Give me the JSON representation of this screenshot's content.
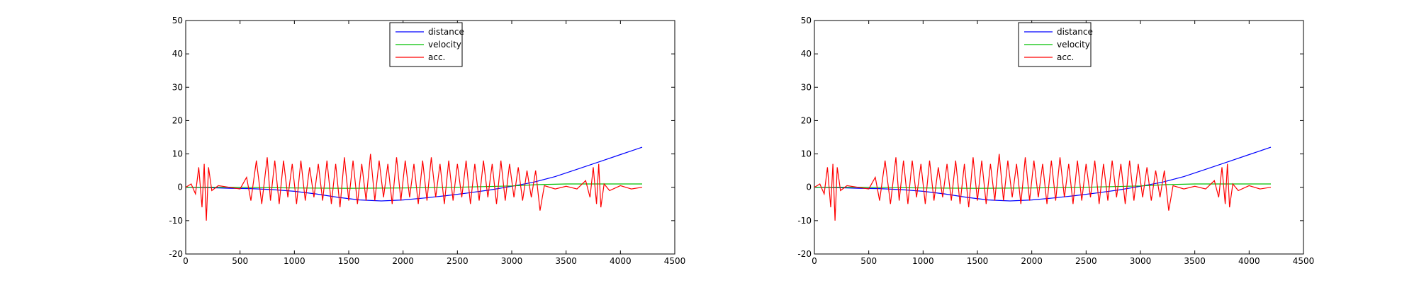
{
  "chart_data": [
    {
      "type": "line",
      "title": "",
      "xlabel": "",
      "ylabel": "",
      "xlim": [
        0,
        4500
      ],
      "ylim": [
        -20,
        50
      ],
      "xticks": [
        0,
        500,
        1000,
        1500,
        2000,
        2500,
        3000,
        3500,
        4000,
        4500
      ],
      "yticks": [
        -20,
        -10,
        0,
        10,
        20,
        30,
        40,
        50
      ],
      "x_tick_labels": [
        "0",
        "500",
        "1000",
        "1500",
        "2000",
        "2500",
        "3000",
        "3500",
        "4000",
        "4500"
      ],
      "y_tick_labels": [
        "-20",
        "-10",
        "0",
        "10",
        "20",
        "30",
        "40",
        "50"
      ],
      "grid": false,
      "legend_position": "top-center",
      "series": [
        {
          "name": "distance",
          "color": "#0000ff",
          "x": [
            0,
            200,
            400,
            600,
            800,
            1000,
            1200,
            1400,
            1600,
            1800,
            2000,
            2200,
            2400,
            2600,
            2800,
            3000,
            3200,
            3400,
            3600,
            3800,
            4000,
            4200
          ],
          "y": [
            0,
            -0.1,
            -0.3,
            -0.4,
            -0.7,
            -1.2,
            -2,
            -3,
            -3.8,
            -4.1,
            -3.8,
            -3.2,
            -2.5,
            -1.7,
            -0.8,
            0.3,
            1.5,
            3.2,
            5.4,
            7.6,
            9.8,
            12
          ]
        },
        {
          "name": "velocity",
          "color": "#00c000",
          "x": [
            0,
            500,
            1000,
            1500,
            2000,
            2500,
            3000,
            3250,
            3500,
            4200
          ],
          "y": [
            0,
            0,
            -0.2,
            -0.3,
            -0.2,
            0,
            0.4,
            0.8,
            1,
            1
          ]
        },
        {
          "name": "acc.",
          "color": "#ff0000",
          "x": [
            0,
            50,
            90,
            120,
            150,
            170,
            190,
            210,
            240,
            300,
            400,
            500,
            560,
            600,
            650,
            700,
            750,
            780,
            820,
            860,
            900,
            940,
            980,
            1020,
            1060,
            1100,
            1140,
            1180,
            1220,
            1260,
            1300,
            1340,
            1380,
            1420,
            1460,
            1500,
            1540,
            1580,
            1620,
            1660,
            1700,
            1740,
            1780,
            1820,
            1860,
            1900,
            1940,
            1980,
            2020,
            2060,
            2100,
            2140,
            2180,
            2220,
            2260,
            2300,
            2340,
            2380,
            2420,
            2460,
            2500,
            2540,
            2580,
            2620,
            2660,
            2700,
            2740,
            2780,
            2820,
            2860,
            2900,
            2940,
            2980,
            3020,
            3060,
            3100,
            3140,
            3180,
            3220,
            3260,
            3300,
            3400,
            3500,
            3600,
            3680,
            3720,
            3750,
            3780,
            3800,
            3820,
            3850,
            3900,
            4000,
            4100,
            4200
          ],
          "y": [
            0,
            1,
            -2,
            6,
            -6,
            7,
            -10,
            6,
            -1,
            0.5,
            0,
            -0.5,
            3,
            -4,
            8,
            -5,
            9,
            -4,
            8,
            -5,
            8,
            -3,
            7,
            -5,
            8,
            -4,
            6,
            -3,
            7,
            -4,
            8,
            -5,
            7,
            -6,
            9,
            -4,
            8,
            -5,
            7,
            -4,
            10,
            -4,
            8,
            -3,
            7,
            -5,
            9,
            -4,
            8,
            -3,
            7,
            -5,
            8,
            -4,
            9,
            -3,
            7,
            -5,
            8,
            -4,
            7,
            -3,
            8,
            -5,
            7,
            -4,
            8,
            -3,
            7,
            -5,
            8,
            -4,
            7,
            -3,
            6,
            -4,
            5,
            -3,
            5,
            -7,
            0.5,
            -0.5,
            0.3,
            -0.5,
            2,
            -3,
            6,
            -5,
            7,
            -6,
            1,
            -1,
            0.5,
            -0.5,
            0
          ]
        }
      ]
    },
    {
      "type": "line",
      "title": "",
      "xlabel": "",
      "ylabel": "",
      "xlim": [
        0,
        4500
      ],
      "ylim": [
        -20,
        50
      ],
      "xticks": [
        0,
        500,
        1000,
        1500,
        2000,
        2500,
        3000,
        3500,
        4000,
        4500
      ],
      "yticks": [
        -20,
        -10,
        0,
        10,
        20,
        30,
        40,
        50
      ],
      "x_tick_labels": [
        "0",
        "500",
        "1000",
        "1500",
        "2000",
        "2500",
        "3000",
        "3500",
        "4000",
        "4500"
      ],
      "y_tick_labels": [
        "-20",
        "-10",
        "0",
        "10",
        "20",
        "30",
        "40",
        "50"
      ],
      "grid": false,
      "legend_position": "top-center",
      "series": [
        {
          "name": "distance",
          "color": "#0000ff",
          "x": [
            0,
            200,
            400,
            600,
            800,
            1000,
            1200,
            1400,
            1600,
            1800,
            2000,
            2200,
            2400,
            2600,
            2800,
            3000,
            3200,
            3400,
            3600,
            3800,
            4000,
            4200
          ],
          "y": [
            0,
            -0.1,
            -0.3,
            -0.4,
            -0.7,
            -1.2,
            -2,
            -3,
            -3.8,
            -4.1,
            -3.8,
            -3.2,
            -2.5,
            -1.7,
            -0.8,
            0.3,
            1.5,
            3.2,
            5.4,
            7.6,
            9.8,
            12
          ]
        },
        {
          "name": "velocity",
          "color": "#00c000",
          "x": [
            0,
            500,
            1000,
            1500,
            2000,
            2500,
            3000,
            3250,
            3500,
            4200
          ],
          "y": [
            0,
            0,
            -0.2,
            -0.3,
            -0.2,
            0,
            0.4,
            0.8,
            1,
            1
          ]
        },
        {
          "name": "acc.",
          "color": "#ff0000",
          "x": [
            0,
            50,
            90,
            120,
            150,
            170,
            190,
            210,
            240,
            300,
            400,
            500,
            560,
            600,
            650,
            700,
            750,
            780,
            820,
            860,
            900,
            940,
            980,
            1020,
            1060,
            1100,
            1140,
            1180,
            1220,
            1260,
            1300,
            1340,
            1380,
            1420,
            1460,
            1500,
            1540,
            1580,
            1620,
            1660,
            1700,
            1740,
            1780,
            1820,
            1860,
            1900,
            1940,
            1980,
            2020,
            2060,
            2100,
            2140,
            2180,
            2220,
            2260,
            2300,
            2340,
            2380,
            2420,
            2460,
            2500,
            2540,
            2580,
            2620,
            2660,
            2700,
            2740,
            2780,
            2820,
            2860,
            2900,
            2940,
            2980,
            3020,
            3060,
            3100,
            3140,
            3180,
            3220,
            3260,
            3300,
            3400,
            3500,
            3600,
            3680,
            3720,
            3750,
            3780,
            3800,
            3820,
            3850,
            3900,
            4000,
            4100,
            4200
          ],
          "y": [
            0,
            1,
            -2,
            6,
            -6,
            7,
            -10,
            6,
            -1,
            0.5,
            0,
            -0.5,
            3,
            -4,
            8,
            -5,
            9,
            -4,
            8,
            -5,
            8,
            -3,
            7,
            -5,
            8,
            -4,
            6,
            -3,
            7,
            -4,
            8,
            -5,
            7,
            -6,
            9,
            -4,
            8,
            -5,
            7,
            -4,
            10,
            -4,
            8,
            -3,
            7,
            -5,
            9,
            -4,
            8,
            -3,
            7,
            -5,
            8,
            -4,
            9,
            -3,
            7,
            -5,
            8,
            -4,
            7,
            -3,
            8,
            -5,
            7,
            -4,
            8,
            -3,
            7,
            -5,
            8,
            -4,
            7,
            -3,
            6,
            -4,
            5,
            -3,
            5,
            -7,
            0.5,
            -0.5,
            0.3,
            -0.5,
            2,
            -3,
            6,
            -5,
            7,
            -6,
            1,
            -1,
            0.5,
            -0.5,
            0
          ]
        }
      ]
    }
  ]
}
